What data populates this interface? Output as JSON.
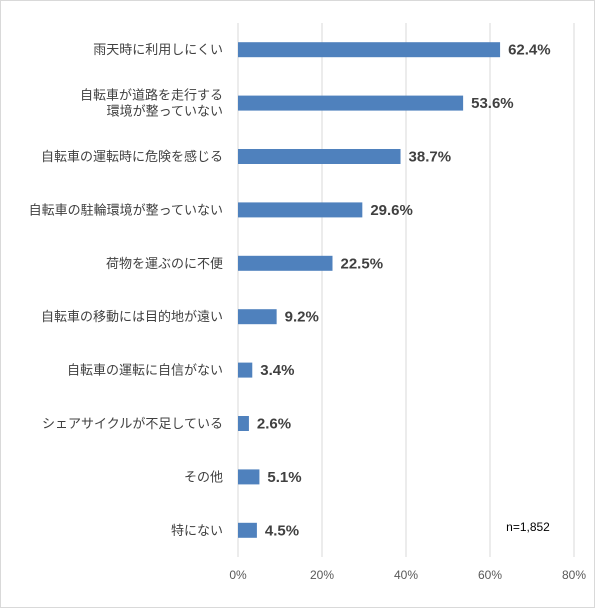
{
  "chart_data": {
    "type": "bar",
    "orientation": "horizontal",
    "categories": [
      [
        "雨天時に利用しにくい"
      ],
      [
        "自転車が道路を走行する",
        "環境が整っていない"
      ],
      [
        "自転車の運転時に危険を感じる"
      ],
      [
        "自転車の駐輪環境が整っていない"
      ],
      [
        "荷物を運ぶのに不便"
      ],
      [
        "自転車の移動には目的地が遠い"
      ],
      [
        "自転車の運転に自信がない"
      ],
      [
        "シェアサイクルが不足している"
      ],
      [
        "その他"
      ],
      [
        "特にない"
      ]
    ],
    "values": [
      62.4,
      53.6,
      38.7,
      29.6,
      22.5,
      9.2,
      3.4,
      2.6,
      5.1,
      4.5
    ],
    "value_labels": [
      "62.4%",
      "53.6%",
      "38.7%",
      "29.6%",
      "22.5%",
      "9.2%",
      "3.4%",
      "2.6%",
      "5.1%",
      "4.5%"
    ],
    "xlim": [
      0,
      80
    ],
    "x_ticks": [
      0,
      20,
      40,
      60,
      80
    ],
    "x_tick_labels": [
      "0%",
      "20%",
      "40%",
      "60%",
      "80%"
    ],
    "grid": true,
    "legend": "none",
    "title": "",
    "xlabel": "",
    "ylabel": "",
    "annotation": "n=1,852",
    "colors": {
      "bar": "#4f81bd",
      "grid": "#d9d9d9",
      "text": "#404040"
    }
  }
}
